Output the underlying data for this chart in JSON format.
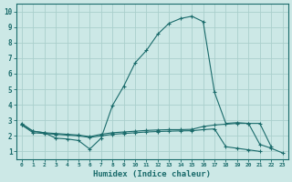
{
  "xlabel": "Humidex (Indice chaleur)",
  "xlim": [
    -0.5,
    23.5
  ],
  "ylim": [
    0.5,
    10.5
  ],
  "xticks": [
    0,
    1,
    2,
    3,
    4,
    5,
    6,
    7,
    8,
    9,
    10,
    11,
    12,
    13,
    14,
    15,
    16,
    17,
    18,
    19,
    20,
    21,
    22,
    23
  ],
  "yticks": [
    1,
    2,
    3,
    4,
    5,
    6,
    7,
    8,
    9,
    10
  ],
  "bg_color": "#cce8e6",
  "grid_color": "#aacfcc",
  "line_color": "#1a6b6b",
  "line1_x": [
    0,
    1,
    2,
    3,
    4,
    5,
    6,
    7,
    8,
    9,
    10,
    11,
    12,
    13,
    14,
    15,
    16,
    17,
    18,
    19,
    20,
    21,
    22,
    23
  ],
  "line1_y": [
    2.8,
    2.3,
    2.2,
    1.85,
    1.8,
    1.7,
    1.15,
    1.85,
    3.95,
    5.2,
    6.7,
    7.5,
    8.55,
    9.25,
    9.55,
    9.7,
    9.35,
    4.8,
    2.8,
    2.85,
    2.8,
    1.45,
    1.2,
    0.9
  ],
  "line2_x": [
    0,
    1,
    2,
    3,
    4,
    5,
    6,
    7,
    8,
    9,
    10,
    11,
    12,
    13,
    14,
    15,
    16,
    17,
    18,
    19,
    20,
    21,
    22,
    23
  ],
  "line2_y": [
    2.7,
    2.3,
    2.2,
    2.15,
    2.1,
    2.05,
    1.95,
    2.1,
    2.2,
    2.25,
    2.3,
    2.35,
    2.38,
    2.4,
    2.4,
    2.42,
    2.6,
    2.7,
    2.75,
    2.8,
    2.8,
    2.8,
    1.3,
    null
  ],
  "line3_x": [
    0,
    1,
    2,
    3,
    4,
    5,
    6,
    7,
    8,
    9,
    10,
    11,
    12,
    13,
    14,
    15,
    16,
    17,
    18,
    19,
    20,
    21,
    22,
    23
  ],
  "line3_y": [
    2.7,
    2.2,
    2.15,
    2.1,
    2.05,
    2.0,
    1.9,
    2.0,
    2.1,
    2.15,
    2.2,
    2.25,
    2.28,
    2.3,
    2.32,
    2.33,
    2.4,
    2.45,
    1.3,
    1.2,
    1.1,
    1.0,
    null,
    null
  ]
}
